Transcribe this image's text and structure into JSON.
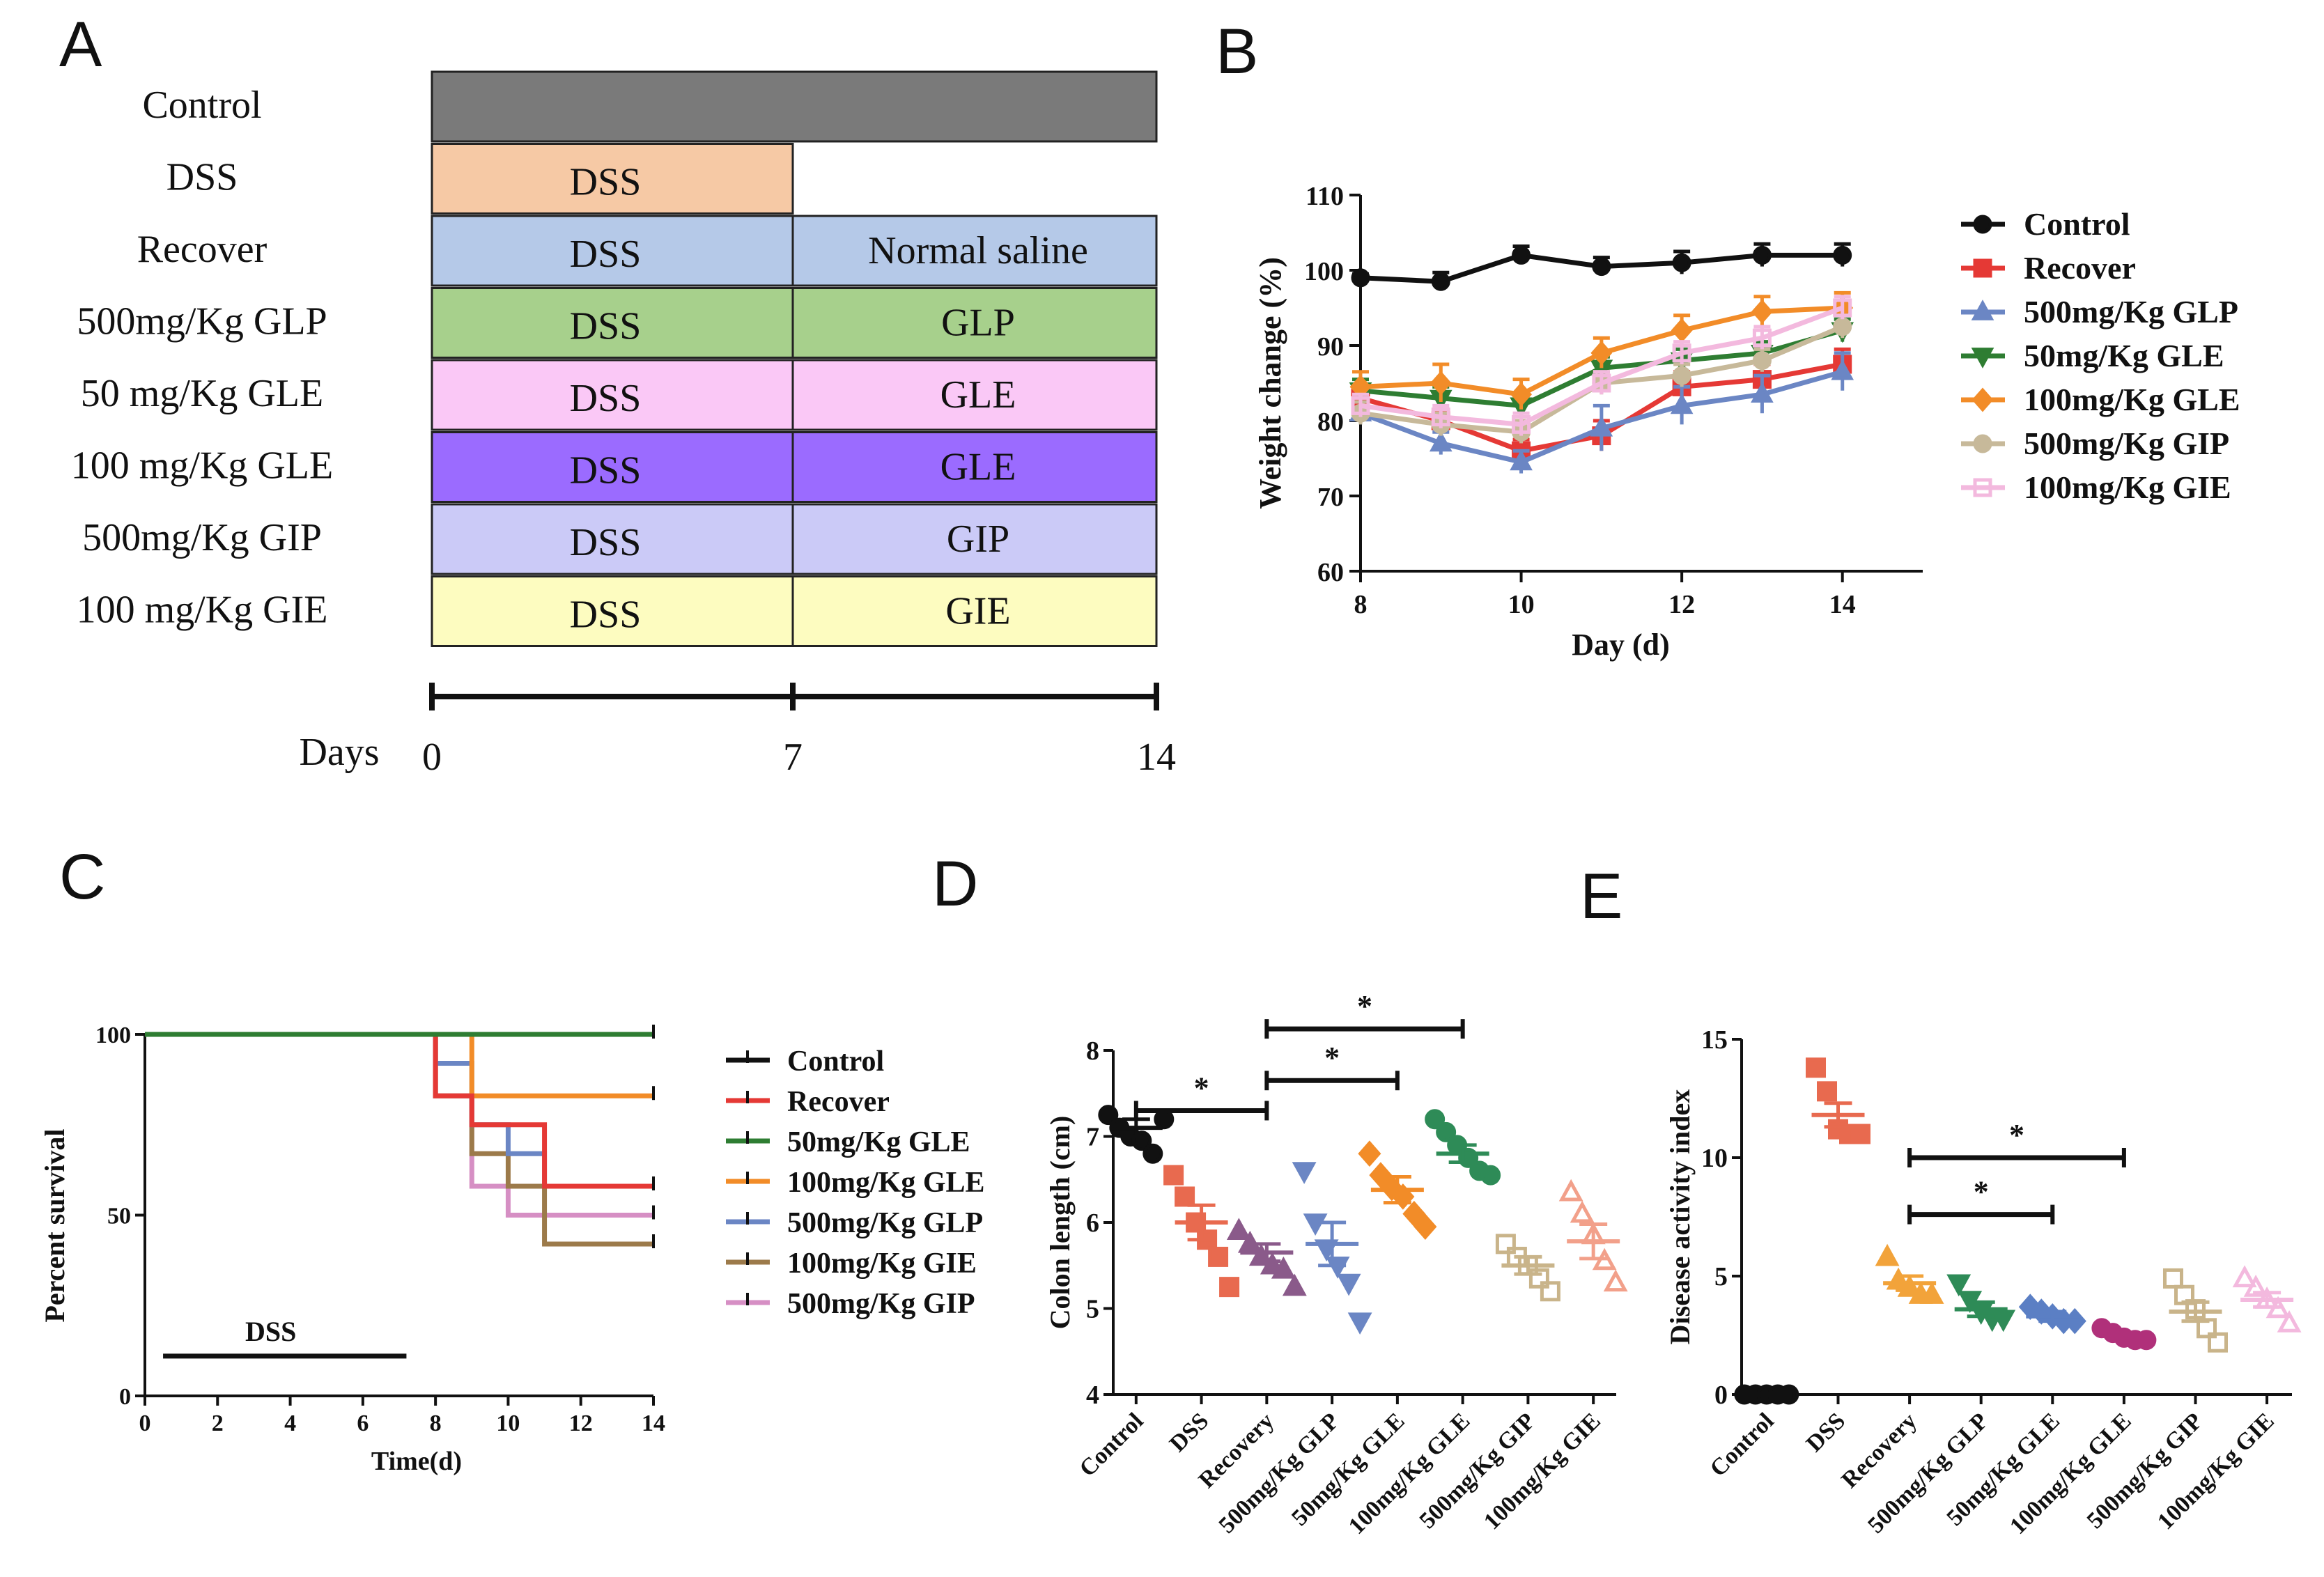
{
  "panels": {
    "a": "A",
    "b": "B",
    "c": "C",
    "d": "D",
    "e": "E"
  },
  "schedule": {
    "rows": [
      {
        "label": "Control",
        "first": "",
        "second": "",
        "color_first": "#7a7a7a",
        "color_second": "#7a7a7a"
      },
      {
        "label": "DSS",
        "first": "DSS",
        "second": null,
        "color_first": "#f6c9a5",
        "color_second": null
      },
      {
        "label": "Recover",
        "first": "DSS",
        "second": "Normal saline",
        "color_first": "#b5c9e8",
        "color_second": "#b5c9e8"
      },
      {
        "label": "500mg/Kg GLP",
        "first": "DSS",
        "second": "GLP",
        "color_first": "#a7d08c",
        "color_second": "#a7d08c"
      },
      {
        "label": "50 mg/Kg GLE",
        "first": "DSS",
        "second": "GLE",
        "color_first": "#fac8f6",
        "color_second": "#fac8f6"
      },
      {
        "label": "100 mg/Kg GLE",
        "first": "DSS",
        "second": "GLE",
        "color_first": "#9b6bff",
        "color_second": "#9b6bff"
      },
      {
        "label": "500mg/Kg GIP",
        "first": "DSS",
        "second": "GIP",
        "color_first": "#cbcaf7",
        "color_second": "#cbcaf7"
      },
      {
        "label": "100 mg/Kg GIE",
        "first": "DSS",
        "second": "GIE",
        "color_first": "#fdfcc0",
        "color_second": "#fdfcc0"
      }
    ],
    "days_label": "Days",
    "days_ticks": [
      "0",
      "7",
      "14"
    ]
  },
  "chart_data": [
    {
      "id": "B",
      "type": "line",
      "title": "",
      "xlabel": "Day (d)",
      "ylabel": "Weight change (%)",
      "xlim": [
        8,
        15
      ],
      "ylim": [
        60,
        110
      ],
      "xticks": [
        8,
        10,
        12,
        14
      ],
      "yticks": [
        60,
        70,
        80,
        90,
        100,
        110
      ],
      "x": [
        8,
        9,
        10,
        11,
        12,
        13,
        14
      ],
      "series": [
        {
          "name": "Control",
          "color": "#111111",
          "marker": "circle",
          "values": [
            99,
            98.5,
            102,
            100.5,
            101,
            102,
            102
          ],
          "err": [
            0.5,
            1.2,
            1.2,
            1.2,
            1.5,
            1.5,
            1.5
          ]
        },
        {
          "name": "Recover",
          "color": "#e53935",
          "marker": "square",
          "values": [
            83,
            80,
            76,
            78,
            84.5,
            85.5,
            87.5
          ],
          "err": [
            1.5,
            1.5,
            1.5,
            2,
            2,
            2,
            2
          ]
        },
        {
          "name": "500mg/Kg GLP",
          "color": "#6b86c4",
          "marker": "triangle",
          "values": [
            81,
            77,
            74.5,
            79,
            82,
            83.5,
            86.5
          ],
          "err": [
            1.5,
            1.5,
            1.5,
            3,
            2.5,
            2.5,
            2.5
          ]
        },
        {
          "name": "50mg/Kg GLE",
          "color": "#2e7d32",
          "marker": "triangle-down",
          "values": [
            84,
            83,
            82,
            87,
            88,
            89,
            92
          ],
          "err": [
            1.5,
            1.5,
            1.5,
            1.5,
            1.5,
            1.5,
            1.5
          ]
        },
        {
          "name": "100mg/Kg GLE",
          "color": "#f28c28",
          "marker": "diamond",
          "values": [
            84.5,
            85,
            83.5,
            89,
            92,
            94.5,
            95
          ],
          "err": [
            2,
            2.5,
            2,
            2,
            2,
            2,
            2
          ]
        },
        {
          "name": "500mg/Kg GIP",
          "color": "#c7b99a",
          "marker": "circle",
          "values": [
            81,
            79.5,
            78.5,
            85,
            86,
            88,
            92.5
          ],
          "err": [
            1.5,
            1.5,
            1.5,
            1.5,
            1.5,
            1.5,
            1.5
          ]
        },
        {
          "name": "100mg/Kg GIE",
          "color": "#f3b9de",
          "marker": "square-open",
          "values": [
            82,
            80.5,
            79.5,
            85,
            89,
            91,
            95
          ],
          "err": [
            1.5,
            1.5,
            1.5,
            1.5,
            1.5,
            1.5,
            1.5
          ]
        }
      ]
    },
    {
      "id": "C",
      "type": "line",
      "title": "",
      "xlabel": "Time(d)",
      "ylabel": "Percent survival",
      "xlim": [
        0,
        14
      ],
      "ylim": [
        0,
        100
      ],
      "xticks": [
        0,
        2,
        4,
        6,
        8,
        10,
        12,
        14
      ],
      "yticks": [
        0,
        50,
        100
      ],
      "annotation": {
        "text": "DSS",
        "x_start": 0.5,
        "x_end": 7.2,
        "y": 11
      },
      "series": [
        {
          "name": "Control",
          "color": "#111111",
          "steps": [
            [
              0,
              100
            ],
            [
              14,
              100
            ]
          ]
        },
        {
          "name": "Recover",
          "color": "#e53935",
          "steps": [
            [
              0,
              100
            ],
            [
              8,
              100
            ],
            [
              8,
              83
            ],
            [
              9,
              83
            ],
            [
              9,
              75
            ],
            [
              11,
              75
            ],
            [
              11,
              58
            ],
            [
              14,
              58
            ]
          ]
        },
        {
          "name": "50mg/Kg GLE",
          "color": "#2e7d32",
          "steps": [
            [
              0,
              100
            ],
            [
              14,
              100
            ]
          ]
        },
        {
          "name": "100mg/Kg GLE",
          "color": "#f28c28",
          "steps": [
            [
              0,
              100
            ],
            [
              9,
              100
            ],
            [
              9,
              83
            ],
            [
              14,
              83
            ]
          ]
        },
        {
          "name": "500mg/Kg GLP",
          "color": "#6b86c4",
          "steps": [
            [
              0,
              100
            ],
            [
              8,
              100
            ],
            [
              8,
              92
            ],
            [
              9,
              92
            ],
            [
              9,
              75
            ],
            [
              10,
              75
            ],
            [
              10,
              67
            ],
            [
              11,
              67
            ],
            [
              11,
              58
            ],
            [
              14,
              58
            ]
          ]
        },
        {
          "name": "100mg/Kg GIE",
          "color": "#9c7a4a",
          "steps": [
            [
              0,
              100
            ],
            [
              8,
              100
            ],
            [
              8,
              83
            ],
            [
              9,
              83
            ],
            [
              9,
              67
            ],
            [
              10,
              67
            ],
            [
              10,
              58
            ],
            [
              11,
              58
            ],
            [
              11,
              42
            ],
            [
              14,
              42
            ]
          ]
        },
        {
          "name": "500mg/Kg GIP",
          "color": "#d68fc4",
          "steps": [
            [
              0,
              100
            ],
            [
              8,
              100
            ],
            [
              8,
              83
            ],
            [
              9,
              83
            ],
            [
              9,
              58
            ],
            [
              10,
              58
            ],
            [
              10,
              50
            ],
            [
              14,
              50
            ]
          ]
        }
      ]
    },
    {
      "id": "D",
      "type": "scatter",
      "title": "",
      "xlabel": "",
      "ylabel": "Colon length (cm)",
      "ylim": [
        4,
        8
      ],
      "yticks": [
        4,
        5,
        6,
        7,
        8
      ],
      "categories": [
        "Control",
        "DSS",
        "Recovery",
        "500mg/Kg GLP",
        "50mg/Kg GLE",
        "100mg/Kg GLE",
        "500mg/Kg GIP",
        "100mg/Kg GIE"
      ],
      "groups": [
        {
          "color": "#111111",
          "marker": "circle",
          "mean": 7.1,
          "sem": 0.1,
          "points": [
            7.25,
            7.1,
            7.0,
            6.95,
            6.8,
            7.2
          ]
        },
        {
          "color": "#e86a4f",
          "marker": "square",
          "mean": 6.0,
          "sem": 0.2,
          "points": [
            6.55,
            6.3,
            6.0,
            5.8,
            5.6,
            5.25
          ]
        },
        {
          "color": "#8a5a8a",
          "marker": "triangle",
          "mean": 5.65,
          "sem": 0.1,
          "points": [
            5.9,
            5.75,
            5.6,
            5.5,
            5.45,
            5.25
          ]
        },
        {
          "color": "#6b86c4",
          "marker": "triangle-down",
          "mean": 5.75,
          "sem": 0.25,
          "points": [
            6.6,
            6.0,
            5.7,
            5.5,
            5.3,
            4.85
          ]
        },
        {
          "color": "#f28c28",
          "marker": "diamond",
          "mean": 6.38,
          "sem": 0.15,
          "points": [
            6.8,
            6.55,
            6.4,
            6.3,
            6.1,
            5.95
          ]
        },
        {
          "color": "#2e8b57",
          "marker": "circle",
          "mean": 6.8,
          "sem": 0.1,
          "points": [
            7.2,
            7.05,
            6.9,
            6.75,
            6.6,
            6.55
          ]
        },
        {
          "color": "#c9b48a",
          "marker": "square-open",
          "mean": 5.5,
          "sem": 0.1,
          "points": [
            5.75,
            5.6,
            5.5,
            5.35,
            5.2
          ]
        },
        {
          "color": "#f2a08a",
          "marker": "triangle-open",
          "mean": 5.78,
          "sem": 0.2,
          "points": [
            6.35,
            6.1,
            5.85,
            5.55,
            5.3
          ]
        }
      ],
      "significance": [
        {
          "from": 0,
          "to": 2,
          "y": 7.3,
          "label": "*"
        },
        {
          "from": 2,
          "to": 4,
          "y": 7.65,
          "label": "*"
        },
        {
          "from": 2,
          "to": 5,
          "y": 8.25,
          "label": "*"
        }
      ]
    },
    {
      "id": "E",
      "type": "scatter",
      "title": "",
      "xlabel": "",
      "ylabel": "Disease activity index",
      "ylim": [
        0,
        15
      ],
      "yticks": [
        0,
        5,
        10,
        15
      ],
      "categories": [
        "Control",
        "DSS",
        "Recovery",
        "500mg/Kg GLP",
        "50mg/Kg GLE",
        "100mg/Kg GLE",
        "500mg/Kg GIP",
        "100mg/Kg GIE"
      ],
      "groups": [
        {
          "color": "#111111",
          "marker": "circle",
          "mean": 0,
          "sem": 0,
          "points": [
            0,
            0,
            0,
            0,
            0
          ]
        },
        {
          "color": "#e86a4f",
          "marker": "square",
          "mean": 11.8,
          "sem": 0.5,
          "points": [
            13.8,
            12.8,
            11.2,
            11.0,
            11.0
          ]
        },
        {
          "color": "#f2a33a",
          "marker": "triangle",
          "mean": 4.7,
          "sem": 0.3,
          "points": [
            5.8,
            4.8,
            4.5,
            4.2,
            4.2
          ]
        },
        {
          "color": "#2e8b57",
          "marker": "triangle-down",
          "mean": 3.6,
          "sem": 0.3,
          "points": [
            4.7,
            4.0,
            3.5,
            3.2,
            3.2
          ]
        },
        {
          "color": "#5b7fc4",
          "marker": "diamond",
          "mean": 3.3,
          "sem": 0.2,
          "points": [
            3.7,
            3.5,
            3.3,
            3.1,
            3.1
          ]
        },
        {
          "color": "#b0307a",
          "marker": "circle",
          "mean": 2.5,
          "sem": 0.1,
          "points": [
            2.8,
            2.6,
            2.4,
            2.3,
            2.3
          ]
        },
        {
          "color": "#c9b48a",
          "marker": "square-open",
          "mean": 3.5,
          "sem": 0.4,
          "points": [
            4.9,
            4.2,
            3.6,
            2.8,
            2.2
          ]
        },
        {
          "color": "#f3b9de",
          "marker": "triangle-open",
          "mean": 4.0,
          "sem": 0.3,
          "points": [
            4.9,
            4.5,
            4.0,
            3.6,
            3.0
          ]
        }
      ],
      "significance": [
        {
          "from": 2,
          "to": 4,
          "y": 7.6,
          "label": "*"
        },
        {
          "from": 2,
          "to": 5,
          "y": 10.0,
          "label": "*"
        }
      ]
    }
  ]
}
